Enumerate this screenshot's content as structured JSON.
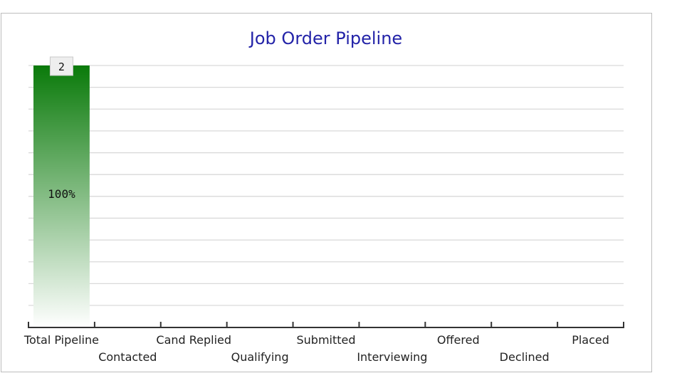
{
  "chart_data": {
    "type": "bar",
    "title": "Job Order Pipeline",
    "categories": [
      "Total Pipeline",
      "Contacted",
      "Cand Replied",
      "Qualifying",
      "Submitted",
      "Interviewing",
      "Offered",
      "Declined",
      "Placed"
    ],
    "values": [
      2,
      0,
      0,
      0,
      0,
      0,
      0,
      0,
      0
    ],
    "bar_labels": [
      "2",
      "",
      "",
      "",
      "",
      "",
      "",
      "",
      ""
    ],
    "percent_labels": [
      "100%",
      "",
      "",
      "",
      "",
      "",
      "",
      "",
      ""
    ],
    "ylim": [
      0,
      2
    ],
    "grid": true,
    "xlabel": "",
    "ylabel": "",
    "colors": {
      "bar_top": "#0a7a0a",
      "bar_bottom": "#ffffff",
      "title": "#2323a8",
      "grid": "#d9d9d9"
    }
  }
}
